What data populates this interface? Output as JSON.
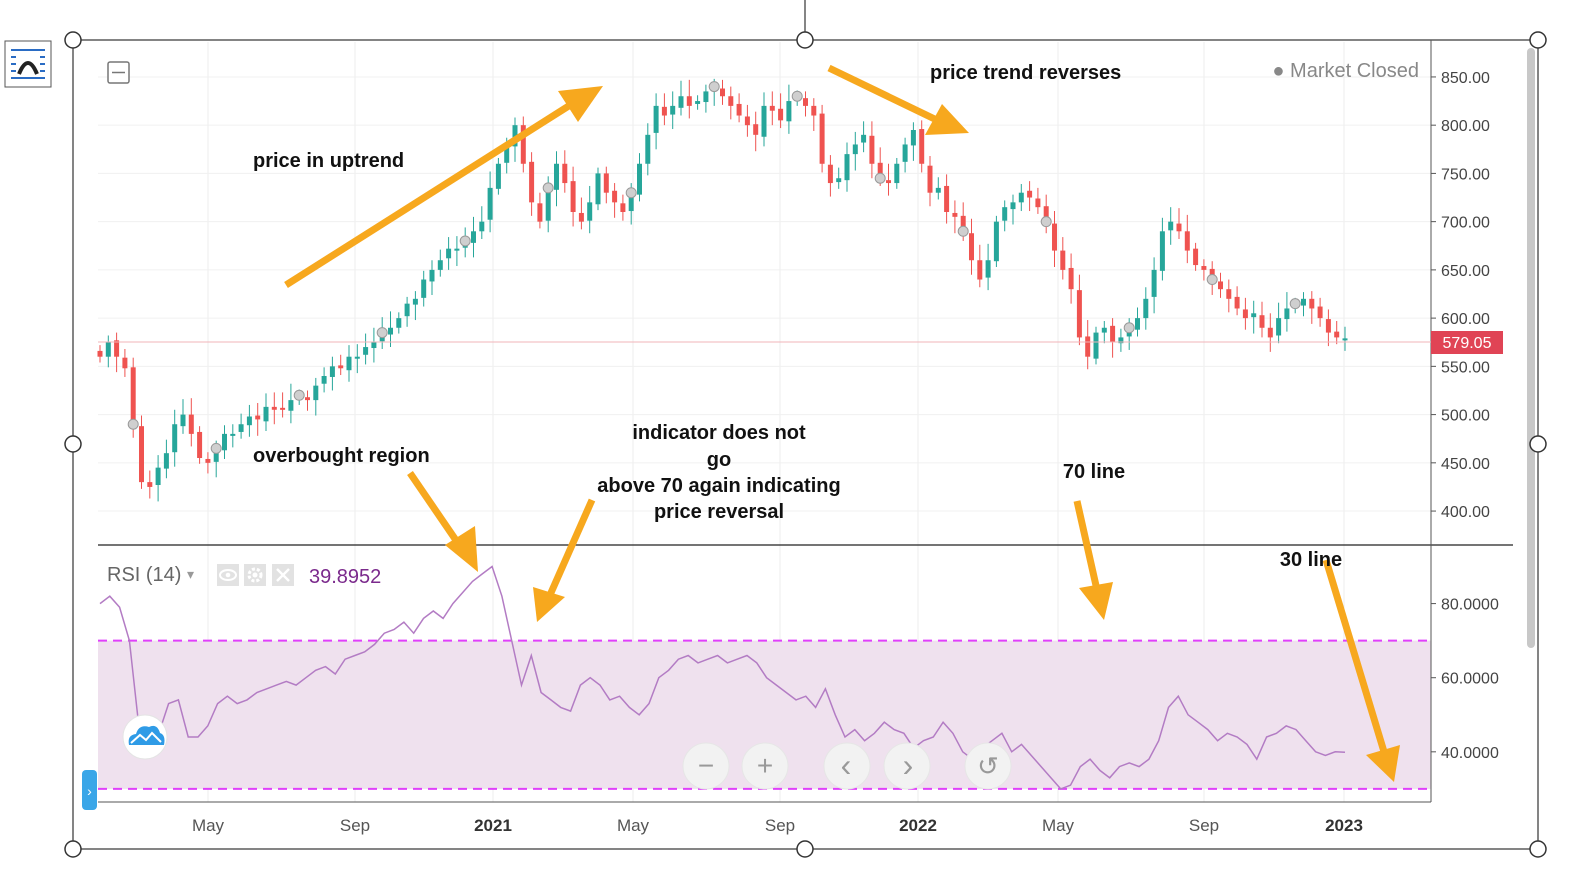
{
  "colors": {
    "up": "#26a69a",
    "down": "#ef5350",
    "rsi_line": "#b37cc4",
    "band_fill": "#efe1ee",
    "band_line": "#e040fb",
    "arrow": "#f7a81e",
    "price_tag_bg": "#e04455",
    "rsi_value": "#7b2a8c"
  },
  "icons": {
    "toolbar": "chart-frame-icon",
    "collapse": "collapse-square-icon",
    "eye": "eye-icon",
    "gear": "gear-icon",
    "close": "close-icon",
    "cloud": "cloud-logo-icon",
    "zoom_out": "minus-icon",
    "zoom_in": "plus-icon",
    "back": "chevron-left-icon",
    "forward": "chevron-right-icon",
    "reset": "reset-icon"
  },
  "header": {
    "market_status": "● Market Closed"
  },
  "indicator": {
    "name": "RSI (14)",
    "value": "39.8952",
    "dropdown_glyph": "▾"
  },
  "annotations": {
    "uptrend": "price in uptrend",
    "reverses": "price trend reverses",
    "overbought": "overbought region",
    "indicator_line1": "indicator does not",
    "indicator_line2": "go",
    "indicator_line3": "above 70 again indicating",
    "indicator_line4": "price reversal",
    "line70": "70 line",
    "line30": "30 line"
  },
  "nav": {
    "zoom_out": "−",
    "zoom_in": "+",
    "back": "‹",
    "forward": "›",
    "reset": "↺"
  },
  "chart_data": [
    {
      "type": "candlestick",
      "title": "",
      "ylim": [
        370,
        880
      ],
      "yticks": [
        "850.00",
        "800.00",
        "750.00",
        "700.00",
        "650.00",
        "600.00",
        "550.00",
        "500.00",
        "450.00",
        "400.00"
      ],
      "ytick_values": [
        850,
        800,
        750,
        700,
        650,
        600,
        550,
        500,
        450,
        400
      ],
      "xticks": [
        {
          "label": "May",
          "bold": false
        },
        {
          "label": "Sep",
          "bold": false
        },
        {
          "label": "2021",
          "bold": true
        },
        {
          "label": "May",
          "bold": false
        },
        {
          "label": "Sep",
          "bold": false
        },
        {
          "label": "2022",
          "bold": true
        },
        {
          "label": "May",
          "bold": false
        },
        {
          "label": "Sep",
          "bold": false
        },
        {
          "label": "2023",
          "bold": true
        }
      ],
      "last_price": 579.05,
      "last_price_label": "579.05",
      "close_series": [
        560,
        575,
        560,
        548,
        490,
        430,
        425,
        445,
        460,
        490,
        500,
        480,
        455,
        450,
        465,
        480,
        480,
        490,
        498,
        495,
        508,
        505,
        505,
        515,
        520,
        515,
        530,
        540,
        550,
        548,
        560,
        560,
        570,
        575,
        585,
        590,
        600,
        615,
        620,
        640,
        650,
        660,
        672,
        672,
        680,
        690,
        700,
        735,
        760,
        780,
        800,
        760,
        720,
        700,
        735,
        760,
        740,
        710,
        700,
        720,
        750,
        730,
        720,
        710,
        730,
        760,
        790,
        820,
        810,
        820,
        830,
        820,
        825,
        835,
        840,
        830,
        820,
        810,
        800,
        790,
        820,
        815,
        805,
        825,
        830,
        820,
        810,
        760,
        740,
        745,
        770,
        780,
        790,
        760,
        745,
        740,
        760,
        780,
        795,
        760,
        730,
        735,
        710,
        705,
        690,
        660,
        640,
        660,
        700,
        715,
        720,
        730,
        725,
        715,
        700,
        670,
        650,
        630,
        580,
        560,
        585,
        590,
        575,
        580,
        590,
        600,
        620,
        650,
        690,
        700,
        690,
        670,
        655,
        650,
        640,
        630,
        620,
        610,
        600,
        605,
        590,
        580,
        600,
        610,
        615,
        620,
        610,
        600,
        585,
        580,
        579
      ]
    },
    {
      "type": "line",
      "name": "RSI (14)",
      "ylim": [
        27,
        95
      ],
      "yticks": [
        "80.0000",
        "60.0000",
        "40.0000"
      ],
      "ytick_values": [
        80,
        60,
        40
      ],
      "upper_band": 70,
      "lower_band": 30,
      "values": [
        80,
        82,
        79,
        70,
        46,
        40,
        45,
        53,
        54,
        44,
        44,
        47,
        53,
        55,
        53,
        54,
        56,
        57,
        58,
        59,
        58,
        60,
        62,
        63,
        61,
        65,
        66,
        67,
        69,
        72,
        73,
        75,
        72,
        76,
        78,
        76,
        80,
        83,
        86,
        88,
        90,
        82,
        70,
        58,
        66,
        56,
        54,
        52,
        51,
        58,
        60,
        58,
        54,
        55,
        52,
        50,
        53,
        60,
        62,
        65,
        66,
        64,
        65,
        66,
        64,
        65,
        66,
        64,
        60,
        58,
        56,
        54,
        55,
        52,
        57,
        50,
        44,
        46,
        43,
        45,
        48,
        46,
        45,
        41,
        43,
        44,
        48,
        45,
        40,
        38,
        41,
        43,
        45,
        40,
        42,
        39,
        36,
        33,
        30,
        31,
        36,
        38,
        35,
        33,
        36,
        37,
        36,
        38,
        43,
        52,
        55,
        50,
        48,
        46,
        43,
        45,
        44,
        42,
        38,
        44,
        45,
        47,
        46,
        43,
        40,
        39,
        40,
        39.9
      ]
    }
  ]
}
